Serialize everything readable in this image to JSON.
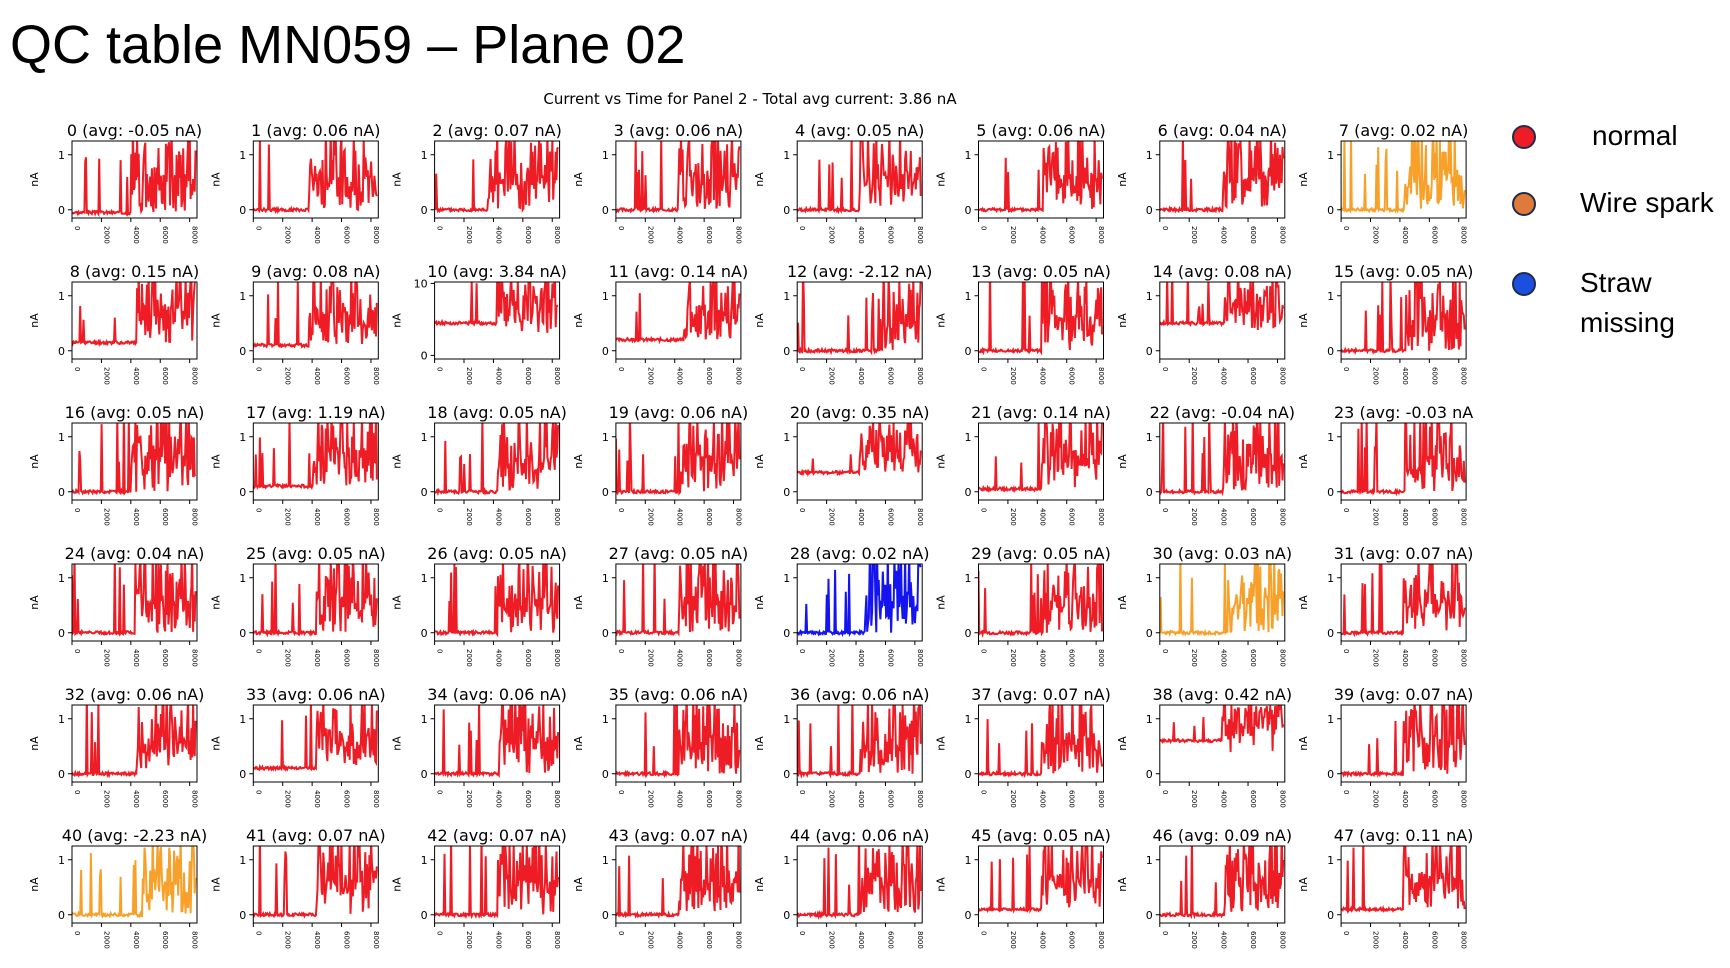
{
  "slide": {
    "title": "QC table MN059 – Plane 02"
  },
  "legend": [
    {
      "label": "normal",
      "color": "#ee1c25"
    },
    {
      "label": "Wire spark",
      "color": "#e07a3a"
    },
    {
      "label": "Straw\nmissing",
      "color": "#1a4fe0"
    }
  ],
  "chart_data": {
    "type": "line",
    "title": "Current vs Time for Panel 2 - Total avg current: 3.86 nA",
    "xlabel": "",
    "ylabel": "nA",
    "xlim": [
      0,
      8500
    ],
    "xticks": [
      "0",
      "2000",
      "4000",
      "6000",
      "8000"
    ],
    "grid": false,
    "status_colors": {
      "normal": "#ee1c25",
      "spark": "#f7a12b",
      "missing": "#1414f0"
    },
    "panels": [
      {
        "label": "0 (avg: -0.05 nA)",
        "yticks": [
          "0",
          "1"
        ],
        "ylim": [
          -0.15,
          1.25
        ],
        "status": "normal",
        "baseline": -0.05,
        "onset": 4000
      },
      {
        "label": "1 (avg: 0.06 nA)",
        "yticks": [
          "0",
          "1"
        ],
        "ylim": [
          -0.15,
          1.25
        ],
        "status": "normal",
        "baseline": 0.0,
        "onset": 3800
      },
      {
        "label": "2 (avg: 0.07 nA)",
        "yticks": [
          "0",
          "1"
        ],
        "ylim": [
          -0.15,
          1.25
        ],
        "status": "normal",
        "baseline": 0.0,
        "onset": 3600
      },
      {
        "label": "3 (avg: 0.06 nA)",
        "yticks": [
          "0",
          "1"
        ],
        "ylim": [
          -0.15,
          1.25
        ],
        "status": "normal",
        "baseline": 0.0,
        "onset": 4200
      },
      {
        "label": "4 (avg: 0.05 nA)",
        "yticks": [
          "0",
          "1"
        ],
        "ylim": [
          -0.15,
          1.25
        ],
        "status": "normal",
        "baseline": 0.0,
        "onset": 4200
      },
      {
        "label": "5 (avg: 0.06 nA)",
        "yticks": [
          "0",
          "1"
        ],
        "ylim": [
          -0.15,
          1.25
        ],
        "status": "normal",
        "baseline": 0.0,
        "onset": 4400
      },
      {
        "label": "6 (avg: 0.04 nA)",
        "yticks": [
          "0",
          "1"
        ],
        "ylim": [
          -0.15,
          1.25
        ],
        "status": "normal",
        "baseline": 0.0,
        "onset": 4300
      },
      {
        "label": "7 (avg: 0.02 nA)",
        "yticks": [
          "0",
          "1"
        ],
        "ylim": [
          -0.15,
          1.25
        ],
        "status": "spark",
        "baseline": 0.0,
        "onset": 4300
      },
      {
        "label": "8 (avg: 0.15 nA)",
        "yticks": [
          "0",
          "1"
        ],
        "ylim": [
          -0.15,
          1.25
        ],
        "status": "normal",
        "baseline": 0.15,
        "onset": 4400
      },
      {
        "label": "9 (avg: 0.08 nA)",
        "yticks": [
          "0",
          "1"
        ],
        "ylim": [
          -0.15,
          1.25
        ],
        "status": "normal",
        "baseline": 0.1,
        "onset": 3800
      },
      {
        "label": "10 (avg: 3.84 nA)",
        "yticks": [
          "0",
          "10"
        ],
        "ylim": [
          -0.5,
          10.2
        ],
        "status": "normal",
        "baseline": 4.5,
        "onset": 4200
      },
      {
        "label": "11 (avg: 0.14 nA)",
        "yticks": [
          "0",
          "1"
        ],
        "ylim": [
          -0.15,
          1.25
        ],
        "status": "normal",
        "baseline": 0.2,
        "onset": 4600
      },
      {
        "label": "12 (avg: -2.12 nA)",
        "yticks": [
          "0",
          "1"
        ],
        "ylim": [
          -0.15,
          1.25
        ],
        "status": "normal",
        "baseline": 0.0,
        "onset": 5600
      },
      {
        "label": "13 (avg: 0.05 nA)",
        "yticks": [
          "0",
          "1"
        ],
        "ylim": [
          -0.15,
          1.25
        ],
        "status": "normal",
        "baseline": 0.0,
        "onset": 4300
      },
      {
        "label": "14 (avg: 0.08 nA)",
        "yticks": [
          "0",
          "1"
        ],
        "ylim": [
          -0.15,
          1.25
        ],
        "status": "normal",
        "baseline": 0.5,
        "onset": 4400
      },
      {
        "label": "15 (avg: 0.05 nA)",
        "yticks": [
          "0",
          "1"
        ],
        "ylim": [
          -0.15,
          1.25
        ],
        "status": "normal",
        "baseline": 0.0,
        "onset": 4400
      },
      {
        "label": "16 (avg: 0.05 nA)",
        "yticks": [
          "0",
          "1"
        ],
        "ylim": [
          -0.15,
          1.25
        ],
        "status": "normal",
        "baseline": 0.0,
        "onset": 4000
      },
      {
        "label": "17 (avg: 1.19 nA)",
        "yticks": [
          "0",
          "1"
        ],
        "ylim": [
          -0.15,
          1.25
        ],
        "status": "normal",
        "baseline": 0.1,
        "onset": 4000
      },
      {
        "label": "18 (avg: 0.05 nA)",
        "yticks": [
          "0",
          "1"
        ],
        "ylim": [
          -0.15,
          1.25
        ],
        "status": "normal",
        "baseline": 0.0,
        "onset": 4300
      },
      {
        "label": "19 (avg: 0.06 nA)",
        "yticks": [
          "0",
          "1"
        ],
        "ylim": [
          -0.15,
          1.25
        ],
        "status": "normal",
        "baseline": 0.0,
        "onset": 4400
      },
      {
        "label": "20 (avg: 0.35 nA)",
        "yticks": [
          "0",
          "1"
        ],
        "ylim": [
          -0.15,
          1.25
        ],
        "status": "normal",
        "baseline": 0.35,
        "onset": 4200
      },
      {
        "label": "21 (avg: 0.14 nA)",
        "yticks": [
          "0",
          "1"
        ],
        "ylim": [
          -0.15,
          1.25
        ],
        "status": "normal",
        "baseline": 0.05,
        "onset": 4300
      },
      {
        "label": "22 (avg: -0.04 nA)",
        "yticks": [
          "0",
          "1"
        ],
        "ylim": [
          -0.15,
          1.25
        ],
        "status": "normal",
        "baseline": 0.0,
        "onset": 4300
      },
      {
        "label": "23 (avg: -0.03 nA",
        "yticks": [
          "0",
          "1"
        ],
        "ylim": [
          -0.15,
          1.25
        ],
        "status": "normal",
        "baseline": 0.0,
        "onset": 4400
      },
      {
        "label": "24 (avg: 0.04 nA)",
        "yticks": [
          "0",
          "1"
        ],
        "ylim": [
          -0.15,
          1.25
        ],
        "status": "normal",
        "baseline": 0.0,
        "onset": 4300
      },
      {
        "label": "25 (avg: 0.05 nA)",
        "yticks": [
          "0",
          "1"
        ],
        "ylim": [
          -0.15,
          1.25
        ],
        "status": "normal",
        "baseline": 0.0,
        "onset": 4300
      },
      {
        "label": "26 (avg: 0.05 nA)",
        "yticks": [
          "0",
          "1"
        ],
        "ylim": [
          -0.15,
          1.25
        ],
        "status": "normal",
        "baseline": 0.0,
        "onset": 4300
      },
      {
        "label": "27 (avg: 0.05 nA)",
        "yticks": [
          "0",
          "1"
        ],
        "ylim": [
          -0.15,
          1.25
        ],
        "status": "normal",
        "baseline": 0.0,
        "onset": 4300
      },
      {
        "label": "28 (avg: 0.02 nA)",
        "yticks": [
          "0",
          "1"
        ],
        "ylim": [
          -0.15,
          1.25
        ],
        "status": "missing",
        "baseline": 0.0,
        "onset": 4600
      },
      {
        "label": "29 (avg: 0.05 nA)",
        "yticks": [
          "0",
          "1"
        ],
        "ylim": [
          -0.15,
          1.25
        ],
        "status": "normal",
        "baseline": 0.0,
        "onset": 4400
      },
      {
        "label": "30 (avg: 0.03 nA)",
        "yticks": [
          "0",
          "1"
        ],
        "ylim": [
          -0.15,
          1.25
        ],
        "status": "spark",
        "baseline": 0.0,
        "onset": 4600
      },
      {
        "label": "31 (avg: 0.07 nA)",
        "yticks": [
          "0",
          "1"
        ],
        "ylim": [
          -0.15,
          1.25
        ],
        "status": "normal",
        "baseline": 0.0,
        "onset": 4200
      },
      {
        "label": "32 (avg: 0.06 nA)",
        "yticks": [
          "0",
          "1"
        ],
        "ylim": [
          -0.15,
          1.25
        ],
        "status": "normal",
        "baseline": 0.0,
        "onset": 4400
      },
      {
        "label": "33 (avg: 0.06 nA)",
        "yticks": [
          "0",
          "1"
        ],
        "ylim": [
          -0.15,
          1.25
        ],
        "status": "normal",
        "baseline": 0.1,
        "onset": 4300
      },
      {
        "label": "34 (avg: 0.06 nA)",
        "yticks": [
          "0",
          "1"
        ],
        "ylim": [
          -0.15,
          1.25
        ],
        "status": "normal",
        "baseline": 0.0,
        "onset": 4400
      },
      {
        "label": "35 (avg: 0.06 nA)",
        "yticks": [
          "0",
          "1"
        ],
        "ylim": [
          -0.15,
          1.25
        ],
        "status": "normal",
        "baseline": 0.0,
        "onset": 4300
      },
      {
        "label": "36 (avg: 0.06 nA)",
        "yticks": [
          "0",
          "1"
        ],
        "ylim": [
          -0.15,
          1.25
        ],
        "status": "normal",
        "baseline": 0.0,
        "onset": 4300
      },
      {
        "label": "37 (avg: 0.07 nA)",
        "yticks": [
          "0",
          "1"
        ],
        "ylim": [
          -0.15,
          1.25
        ],
        "status": "normal",
        "baseline": 0.0,
        "onset": 4300
      },
      {
        "label": "38 (avg: 0.42 nA)",
        "yticks": [
          "0",
          "1"
        ],
        "ylim": [
          -0.15,
          1.25
        ],
        "status": "normal",
        "baseline": 0.6,
        "onset": 4200
      },
      {
        "label": "39 (avg: 0.07 nA)",
        "yticks": [
          "0",
          "1"
        ],
        "ylim": [
          -0.15,
          1.25
        ],
        "status": "normal",
        "baseline": 0.0,
        "onset": 4200
      },
      {
        "label": "40 (avg: -2.23 nA)",
        "yticks": [
          "0",
          "1"
        ],
        "ylim": [
          -0.15,
          1.25
        ],
        "status": "spark",
        "baseline": 0.0,
        "onset": 4800
      },
      {
        "label": "41 (avg: 0.07 nA)",
        "yticks": [
          "0",
          "1"
        ],
        "ylim": [
          -0.15,
          1.25
        ],
        "status": "normal",
        "baseline": 0.0,
        "onset": 4300
      },
      {
        "label": "42 (avg: 0.07 nA)",
        "yticks": [
          "0",
          "1"
        ],
        "ylim": [
          -0.15,
          1.25
        ],
        "status": "normal",
        "baseline": 0.0,
        "onset": 4300
      },
      {
        "label": "43 (avg: 0.07 nA)",
        "yticks": [
          "0",
          "1"
        ],
        "ylim": [
          -0.15,
          1.25
        ],
        "status": "normal",
        "baseline": 0.0,
        "onset": 4300
      },
      {
        "label": "44 (avg: 0.06 nA)",
        "yticks": [
          "0",
          "1"
        ],
        "ylim": [
          -0.15,
          1.25
        ],
        "status": "normal",
        "baseline": 0.0,
        "onset": 4300
      },
      {
        "label": "45 (avg: 0.05 nA)",
        "yticks": [
          "0",
          "1"
        ],
        "ylim": [
          -0.15,
          1.25
        ],
        "status": "normal",
        "baseline": 0.1,
        "onset": 4300
      },
      {
        "label": "46 (avg: 0.09 nA)",
        "yticks": [
          "0",
          "1"
        ],
        "ylim": [
          -0.15,
          1.25
        ],
        "status": "normal",
        "baseline": 0.0,
        "onset": 4400
      },
      {
        "label": "47 (avg: 0.11 nA)",
        "yticks": [
          "0",
          "1"
        ],
        "ylim": [
          -0.15,
          1.25
        ],
        "status": "normal",
        "baseline": 0.1,
        "onset": 4200
      }
    ]
  }
}
